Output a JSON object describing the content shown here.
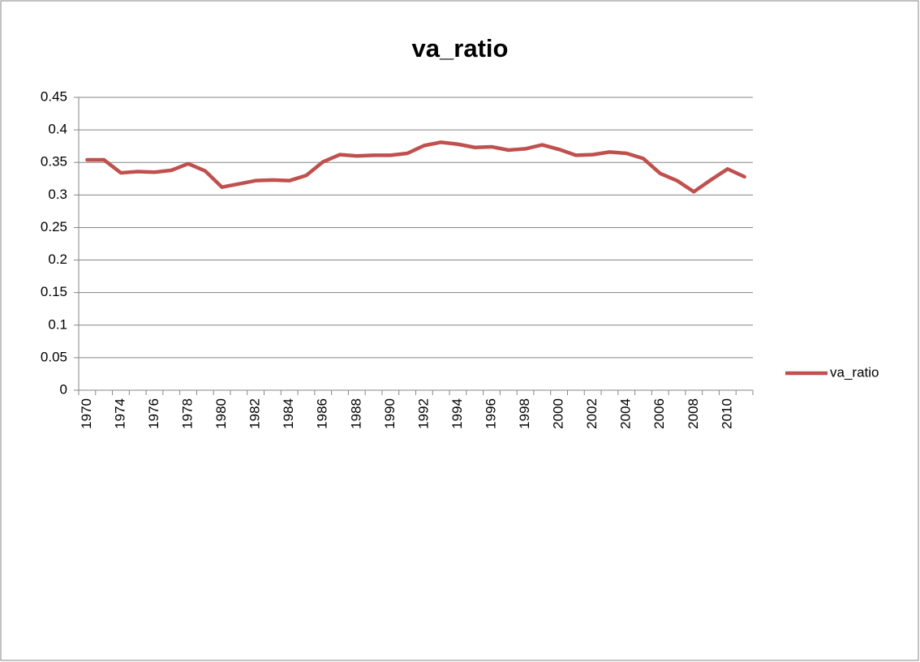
{
  "chart_data": {
    "type": "line",
    "title": "va_ratio",
    "categories": [
      "1970",
      null,
      "1974",
      null,
      "1976",
      null,
      "1978",
      null,
      "1980",
      null,
      "1982",
      null,
      "1984",
      null,
      "1986",
      null,
      "1988",
      null,
      "1990",
      null,
      "1992",
      null,
      "1994",
      null,
      "1996",
      null,
      "1998",
      null,
      "2000",
      null,
      "2002",
      null,
      "2004",
      null,
      "2006",
      null,
      "2008",
      null,
      "2010",
      null
    ],
    "series": [
      {
        "name": "va_ratio",
        "color": "#c0504d",
        "values": [
          0.354,
          0.354,
          0.334,
          0.336,
          0.335,
          0.338,
          0.348,
          0.337,
          0.312,
          0.317,
          0.322,
          0.323,
          0.322,
          0.33,
          0.351,
          0.362,
          0.36,
          0.361,
          0.361,
          0.364,
          0.376,
          0.381,
          0.378,
          0.373,
          0.374,
          0.369,
          0.371,
          0.377,
          0.37,
          0.361,
          0.362,
          0.366,
          0.364,
          0.356,
          0.333,
          0.322,
          0.305,
          0.323,
          0.34,
          0.328
        ]
      }
    ],
    "ylim": [
      0,
      0.45
    ],
    "yticks": [
      0,
      0.05,
      0.1,
      0.15,
      0.2,
      0.25,
      0.3,
      0.35,
      0.4,
      0.45
    ],
    "grid": true,
    "legend": "right"
  }
}
